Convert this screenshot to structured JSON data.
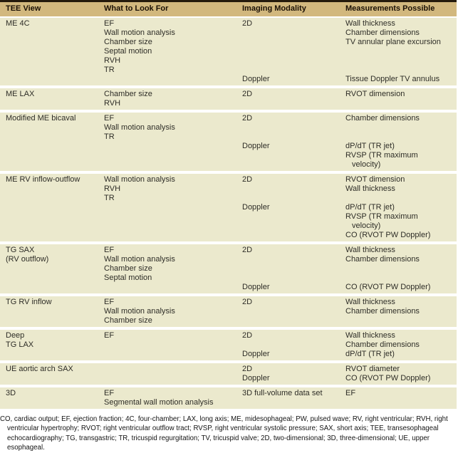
{
  "colors": {
    "header_bg": "#d2b87e",
    "row_bg": "#ebe9cd",
    "top_rule": "#241a0c",
    "header_text": "#1b1106",
    "body_text": "#2e2d27"
  },
  "table": {
    "columns": [
      "TEE View",
      "What to Look For",
      "Imaging Modality",
      "Measurements Possible"
    ],
    "rows": [
      {
        "view": "ME 4C",
        "look_for": [
          "EF",
          "Wall motion analysis",
          "Chamber size",
          "Septal motion",
          "RVH",
          "TR"
        ],
        "groups": [
          {
            "modality": "2D",
            "measurements": [
              "Wall thickness",
              "Chamber dimensions",
              "TV annular plane excursion"
            ]
          },
          {
            "modality": "Doppler",
            "measurements": [
              "Tissue Doppler TV annulus"
            ]
          }
        ]
      },
      {
        "view": "ME LAX",
        "look_for": [
          "Chamber size",
          "RVH"
        ],
        "groups": [
          {
            "modality": "2D",
            "measurements": [
              "RVOT dimension"
            ]
          }
        ]
      },
      {
        "view": "Modified ME bicaval",
        "look_for": [
          "EF",
          "Wall motion analysis",
          "TR"
        ],
        "groups": [
          {
            "modality": "2D",
            "measurements": [
              "Chamber dimensions"
            ]
          },
          {
            "modality": "Doppler",
            "measurements": [
              "dP/dT (TR jet)",
              "RVSP (TR maximum\nvelocity)"
            ]
          }
        ]
      },
      {
        "view": "ME RV inflow-outflow",
        "look_for": [
          "Wall motion analysis",
          "RVH",
          "TR"
        ],
        "groups": [
          {
            "modality": "2D",
            "measurements": [
              "RVOT dimension",
              "Wall thickness"
            ]
          },
          {
            "modality": "Doppler",
            "measurements": [
              "dP/dT (TR jet)",
              "RVSP (TR maximum\nvelocity)",
              "CO (RVOT PW Doppler)"
            ]
          }
        ]
      },
      {
        "view": "TG SAX\n(RV outflow)",
        "look_for": [
          "EF",
          "Wall motion analysis",
          "Chamber size",
          "Septal motion"
        ],
        "groups": [
          {
            "modality": "2D",
            "measurements": [
              "Wall thickness",
              "Chamber dimensions"
            ]
          },
          {
            "modality": "Doppler",
            "measurements": [
              "CO (RVOT PW Doppler)"
            ]
          }
        ]
      },
      {
        "view": "TG RV inflow",
        "look_for": [
          "EF",
          "Wall motion analysis",
          "Chamber size"
        ],
        "groups": [
          {
            "modality": "2D",
            "measurements": [
              "Wall thickness",
              "Chamber dimensions"
            ]
          }
        ]
      },
      {
        "view": "Deep\nTG LAX",
        "look_for": [
          "EF"
        ],
        "groups": [
          {
            "modality": "2D",
            "measurements": [
              "Wall thickness",
              "Chamber dimensions"
            ]
          },
          {
            "modality": "Doppler",
            "measurements": [
              "dP/dT (TR jet)"
            ]
          }
        ]
      },
      {
        "view": "UE aortic arch SAX",
        "look_for": [],
        "groups": [
          {
            "modality": "2D",
            "measurements": [
              "RVOT diameter"
            ]
          },
          {
            "modality": "Doppler",
            "measurements": [
              "CO (RVOT PW Doppler)"
            ]
          }
        ]
      },
      {
        "view": "3D",
        "look_for": [
          "EF",
          "Segmental wall motion analysis"
        ],
        "groups": [
          {
            "modality": "3D full-volume data set",
            "measurements": [
              "EF"
            ]
          }
        ]
      }
    ]
  },
  "footnote": "CO, cardiac output; EF, ejection fraction; 4C, four-chamber; LAX, long axis; ME, midesophageal; PW, pulsed wave; RV, right ventricular; RVH, right ventricular hypertrophy; RVOT; right ventricular outflow tract; RVSP, right ventricular systolic pressure; SAX, short axis; TEE, transesophageal echocardiography; TG, transgastric; TR, tricuspid regurgitation; TV, tricuspid valve; 2D, two-dimensional; 3D, three-dimensional; UE, upper esophageal."
}
